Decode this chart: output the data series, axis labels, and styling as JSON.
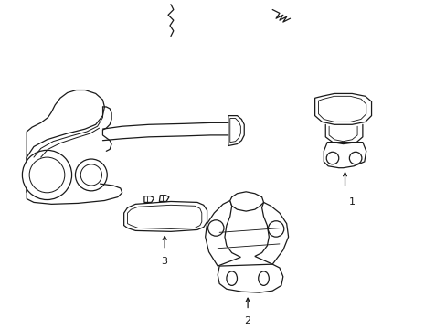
{
  "bg_color": "#ffffff",
  "line_color": "#1a1a1a",
  "lw": 0.9,
  "label_fontsize": 8
}
